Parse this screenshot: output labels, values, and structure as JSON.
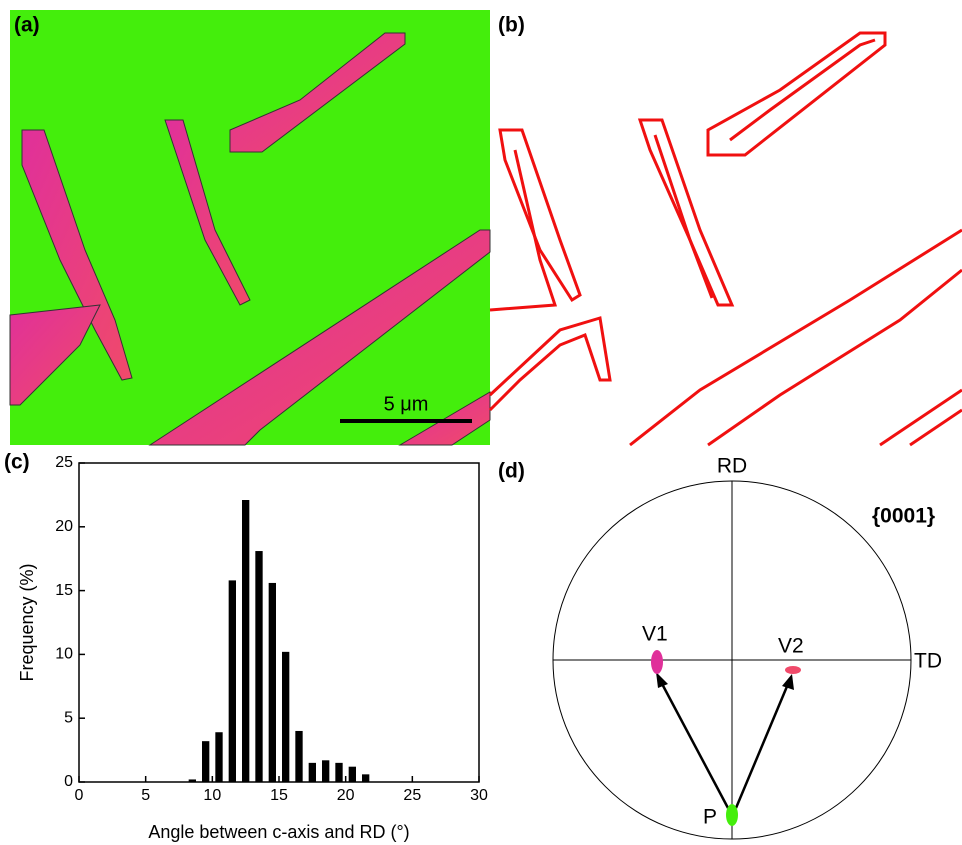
{
  "panel_labels": [
    "(a)",
    "(b)",
    "(c)",
    "(d)"
  ],
  "scale_bar": "5 μm",
  "pole_figure": {
    "rd": "RD",
    "td": "TD",
    "plane": "{0001}",
    "v1": "V1",
    "v2": "V2",
    "p": "P"
  },
  "chart_data": {
    "type": "bar",
    "x_label": "Angle between c-axis and RD (°)",
    "y_label": "Frequency (%)",
    "x": [
      8.5,
      9.5,
      10.5,
      11.5,
      12.5,
      13.5,
      14.5,
      15.5,
      16.5,
      17.5,
      18.5,
      19.5,
      20.5,
      21.5
    ],
    "values": [
      0.2,
      3.2,
      3.9,
      15.8,
      22.1,
      18.1,
      15.6,
      10.2,
      4.0,
      1.5,
      1.7,
      1.5,
      1.2,
      0.6
    ],
    "color": "#000000",
    "xlim": [
      0,
      30
    ],
    "xticks": [
      0,
      5,
      10,
      15,
      20,
      25,
      30
    ],
    "ylim": [
      0,
      25
    ],
    "yticks": [
      0,
      5,
      10,
      15,
      20,
      25
    ]
  }
}
